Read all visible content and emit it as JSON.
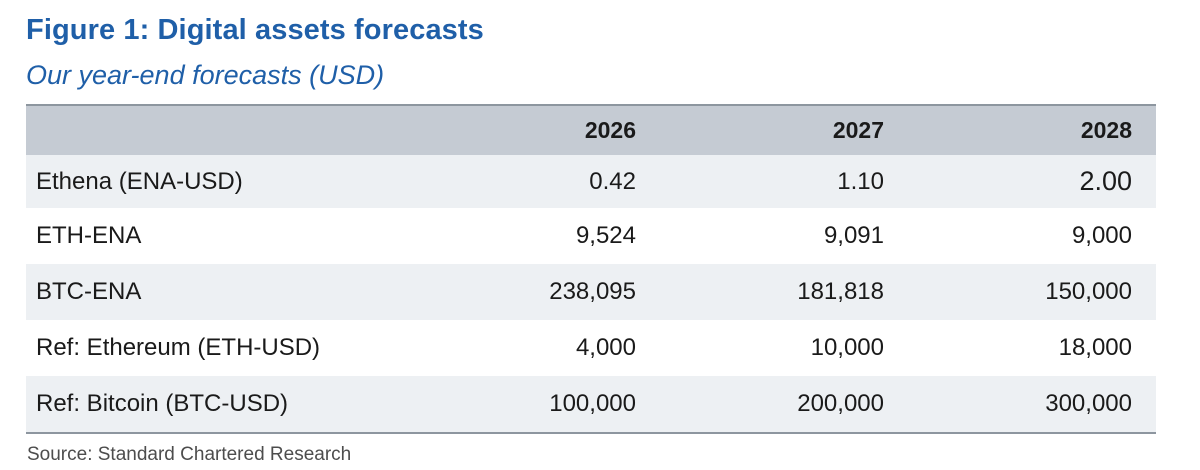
{
  "figure": {
    "title": "Figure 1: Digital assets forecasts",
    "subtitle": "Our year-end forecasts (USD)"
  },
  "table": {
    "columns": [
      "",
      "2026",
      "2027",
      "2028"
    ],
    "rows": [
      {
        "label": "Ethena (ENA-USD)",
        "values": [
          "0.42",
          "1.10",
          "2.00"
        ]
      },
      {
        "label": "ETH-ENA",
        "values": [
          "9,524",
          "9,091",
          "9,000"
        ]
      },
      {
        "label": "BTC-ENA",
        "values": [
          "238,095",
          "181,818",
          "150,000"
        ]
      },
      {
        "label": "Ref: Ethereum (ETH-USD)",
        "values": [
          "4,000",
          "10,000",
          "18,000"
        ]
      },
      {
        "label": "Ref: Bitcoin (BTC-USD)",
        "values": [
          "100,000",
          "200,000",
          "300,000"
        ]
      }
    ]
  },
  "source": "Source: Standard Chartered Research",
  "colors": {
    "title": "#1f5fa8",
    "header_bg": "#c5cbd3",
    "stripe": "#edf0f3",
    "rule": "#8d969f"
  }
}
